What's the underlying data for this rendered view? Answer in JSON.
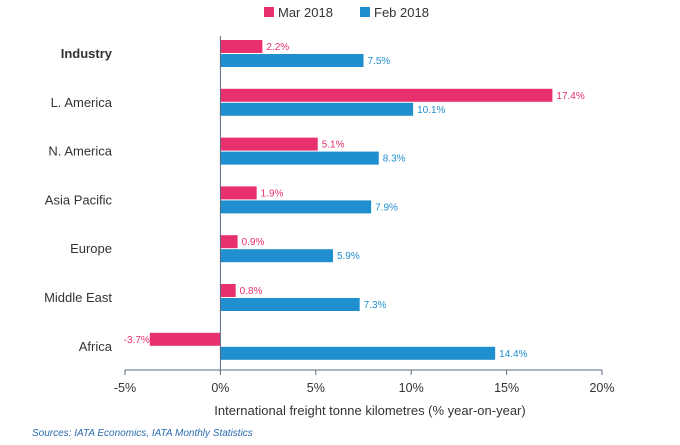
{
  "chart_data": {
    "type": "bar",
    "orientation": "horizontal",
    "categories": [
      "Industry",
      "L. America",
      "N. America",
      "Asia Pacific",
      "Europe",
      "Middle East",
      "Africa"
    ],
    "series": [
      {
        "name": "Mar 2018",
        "color": "#e8306f",
        "values": [
          2.2,
          17.4,
          5.1,
          1.9,
          0.9,
          0.8,
          -3.7
        ],
        "labels": [
          "2.2%",
          "17.4%",
          "5.1%",
          "1.9%",
          "0.9%",
          "0.8%",
          "-3.7%"
        ]
      },
      {
        "name": "Feb 2018",
        "color": "#1f8fcf",
        "values": [
          7.5,
          10.1,
          8.3,
          7.9,
          5.9,
          7.3,
          14.4
        ],
        "labels": [
          "7.5%",
          "10.1%",
          "8.3%",
          "7.9%",
          "5.9%",
          "7.3%",
          "14.4%"
        ]
      }
    ],
    "xlim": [
      -5,
      20
    ],
    "xticks": [
      -5,
      0,
      5,
      10,
      15,
      20
    ],
    "xtick_labels": [
      "-5%",
      "0%",
      "5%",
      "10%",
      "15%",
      "20%"
    ],
    "xlabel": "International freight tonne kilometres (% year-on-year)",
    "ylabel": "",
    "title": "",
    "legend_position": "top-center",
    "grid": false
  },
  "source_note": "Sources: IATA Economics, IATA Monthly Statistics"
}
